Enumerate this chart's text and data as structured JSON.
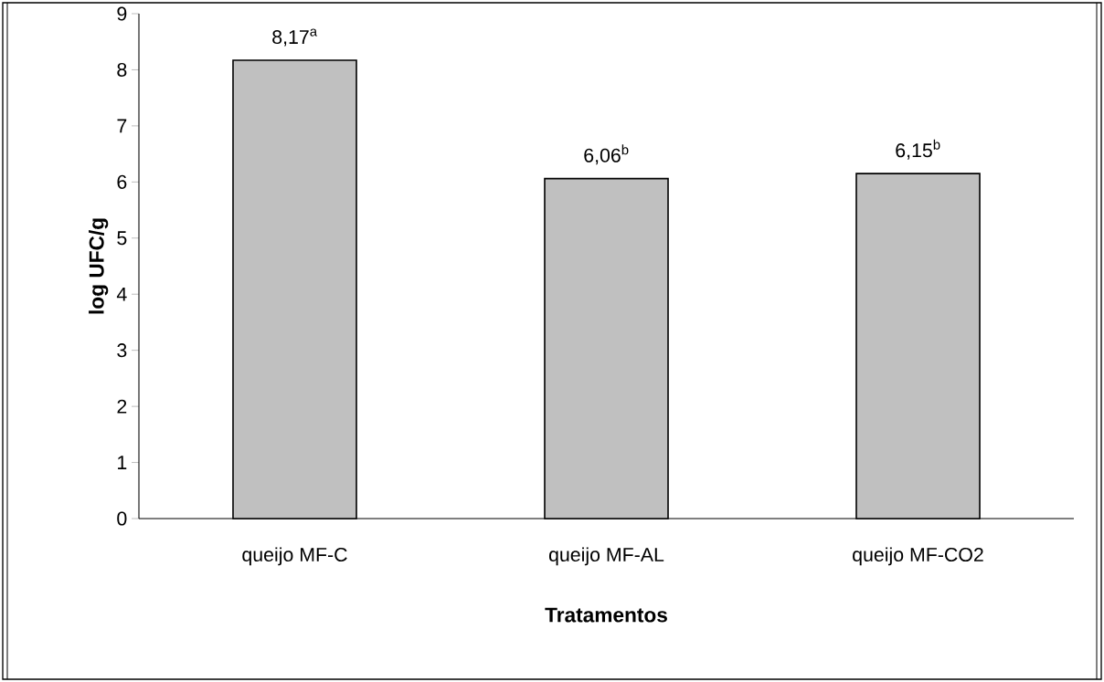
{
  "chart_data": {
    "type": "bar",
    "xlabel": "Tratamentos",
    "ylabel": "log UFC/g",
    "categories": [
      "queijo MF-C",
      "queijo MF-AL",
      "queijo MF-CO2"
    ],
    "values": [
      8.17,
      6.06,
      6.15
    ],
    "value_labels": [
      "8,17$^{a}$",
      "6,06$^{b}$",
      "6,15$^{b}$"
    ],
    "color": "#c0c0c0",
    "ylim": [
      0,
      9
    ],
    "yticks": [
      0,
      1,
      2,
      3,
      4,
      5,
      6,
      7,
      8,
      9
    ]
  }
}
